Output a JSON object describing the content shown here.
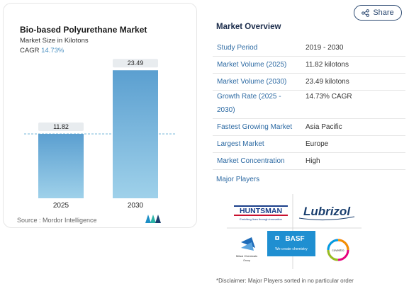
{
  "chart": {
    "title": "Bio-based Polyurethane Market",
    "subtitle": "Market Size in Kilotons",
    "cagr_label": "CAGR",
    "cagr_value": "14.73%",
    "source": "Source : Mordor Intelligence",
    "colors": {
      "bar_top": "#5b9fd0",
      "bar_bottom": "#9fd1ea",
      "label_bg": "#e8ecef"
    }
  },
  "chart_data": {
    "type": "bar",
    "categories": [
      "2025",
      "2030"
    ],
    "values": [
      11.82,
      23.49
    ],
    "value_labels": [
      "11.82",
      "23.49"
    ],
    "title": "Bio-based Polyurethane Market",
    "xlabel": "",
    "ylabel": "",
    "ylim": [
      0,
      25
    ],
    "grid": false
  },
  "share": {
    "label": "Share",
    "icon": "share-icon"
  },
  "overview": {
    "title": "Market Overview",
    "rows": [
      {
        "label": "Study Period",
        "value": "2019 - 2030"
      },
      {
        "label": "Market Volume (2025)",
        "value": "11.82 kilotons"
      },
      {
        "label": "Market Volume (2030)",
        "value": "23.49 kilotons"
      },
      {
        "label": "Growth Rate (2025 -",
        "label2": "2030)",
        "value": "14.73% CAGR"
      },
      {
        "label": "Fastest Growing Market",
        "value": "Asia Pacific"
      },
      {
        "label": "Largest Market",
        "value": "Europe"
      },
      {
        "label": "Market Concentration",
        "value": "High"
      }
    ],
    "major_players_label": "Major Players"
  },
  "players": {
    "huntsman": {
      "name": "HUNTSMAN",
      "tagline": "Enriching lives through innovation"
    },
    "lubrizol": {
      "name": "Lubrizol"
    },
    "basf": {
      "name": "BASF",
      "tagline": "We create chemistry"
    },
    "mitsui": {
      "name": "Mitsui Chemicals",
      "sub": "Group"
    },
    "covestro": {
      "name": "covestro"
    }
  },
  "disclaimer": "*Disclaimer: Major Players sorted in no particular order"
}
